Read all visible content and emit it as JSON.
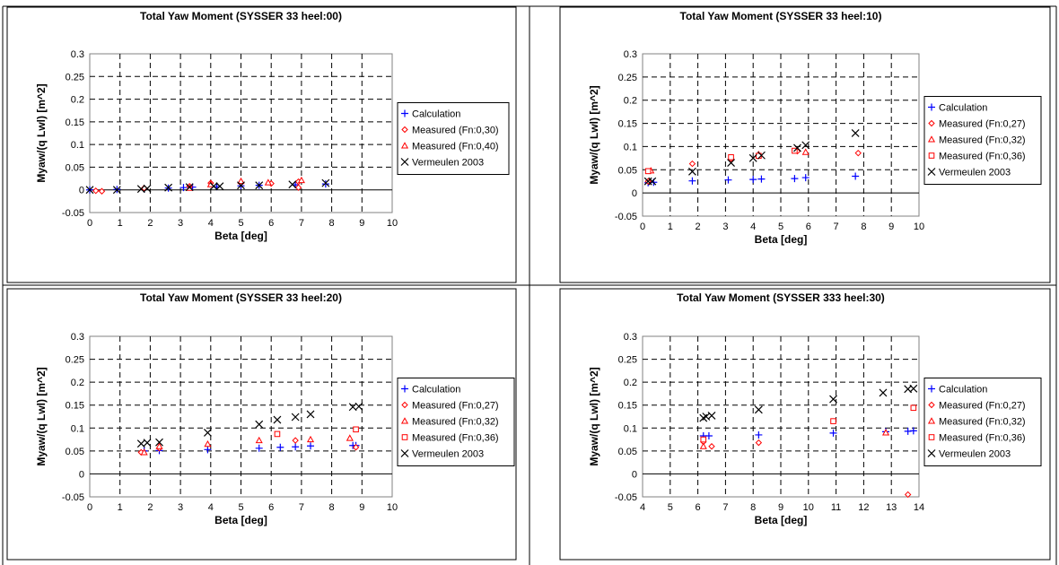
{
  "chart_data": [
    {
      "type": "scatter",
      "title": "Total Yaw Moment (SYSSER 33 heel:00)",
      "xlabel": "Beta [deg]",
      "ylabel": "Myaw/(q Lwl) [m^2]",
      "xlim": [
        0,
        10
      ],
      "ylim": [
        -0.05,
        0.3
      ],
      "xticks": [
        "0",
        "1",
        "2",
        "3",
        "4",
        "5",
        "6",
        "7",
        "8",
        "9",
        "10"
      ],
      "yticks": [
        "-0.05",
        "0",
        "0.05",
        "0.1",
        "0.15",
        "0.2",
        "0.25",
        "0.3"
      ],
      "grid": true,
      "legend_position": "right",
      "series": [
        {
          "name": "Calculation",
          "marker": "plus",
          "color": "#0000ff",
          "points": [
            [
              0,
              0
            ],
            [
              0.9,
              0.001
            ],
            [
              1.8,
              0.002
            ],
            [
              2.6,
              0.004
            ],
            [
              3.1,
              0.005
            ],
            [
              3.4,
              0.006
            ],
            [
              4.2,
              0.007
            ],
            [
              5.0,
              0.009
            ],
            [
              5.6,
              0.01
            ],
            [
              6.8,
              0.011
            ],
            [
              7.8,
              0.013
            ]
          ]
        },
        {
          "name": "Measured (Fn:0,30)",
          "marker": "diamond",
          "color": "#ff0000",
          "points": [
            [
              0.2,
              -0.002
            ],
            [
              0.4,
              -0.003
            ],
            [
              1.8,
              0.004
            ],
            [
              3.3,
              0.008
            ],
            [
              4.0,
              0.015
            ],
            [
              5.0,
              0.015
            ],
            [
              6.0,
              0.014
            ],
            [
              6.9,
              0.018
            ],
            [
              6.9,
              0.005
            ]
          ]
        },
        {
          "name": "Measured (Fn:0,40)",
          "marker": "triangle",
          "color": "#ff0000",
          "points": [
            [
              3.3,
              0.004
            ],
            [
              4.0,
              0.012
            ],
            [
              5.0,
              0.019
            ],
            [
              5.9,
              0.016
            ],
            [
              7.0,
              0.021
            ]
          ]
        },
        {
          "name": "Vermeulen 2003",
          "marker": "x",
          "color": "#000000",
          "points": [
            [
              0,
              0
            ],
            [
              0.9,
              0
            ],
            [
              1.7,
              0.002
            ],
            [
              1.9,
              0.003
            ],
            [
              2.6,
              0.005
            ],
            [
              3.3,
              0.006
            ],
            [
              4.1,
              0.008
            ],
            [
              4.3,
              0.008
            ],
            [
              5.0,
              0.01
            ],
            [
              5.6,
              0.01
            ],
            [
              6.7,
              0.012
            ],
            [
              7.8,
              0.015
            ]
          ]
        }
      ]
    },
    {
      "type": "scatter",
      "title": "Total Yaw Moment (SYSSER 33 heel:10)",
      "xlabel": "Beta [deg]",
      "ylabel": "Myaw/(q Lwl) [m^2]",
      "xlim": [
        0,
        10
      ],
      "ylim": [
        -0.05,
        0.3
      ],
      "xticks": [
        "0",
        "1",
        "2",
        "3",
        "4",
        "5",
        "6",
        "7",
        "8",
        "9",
        "10"
      ],
      "yticks": [
        "-0.05",
        "0",
        "0.05",
        "0.1",
        "0.15",
        "0.2",
        "0.25",
        "0.3"
      ],
      "grid": true,
      "legend_position": "right",
      "series": [
        {
          "name": "Calculation",
          "marker": "plus",
          "color": "#0000ff",
          "points": [
            [
              0.2,
              0.022
            ],
            [
              0.4,
              0.023
            ],
            [
              1.8,
              0.026
            ],
            [
              3.1,
              0.028
            ],
            [
              4.0,
              0.029
            ],
            [
              4.3,
              0.03
            ],
            [
              5.5,
              0.031
            ],
            [
              5.9,
              0.033
            ],
            [
              7.7,
              0.036
            ]
          ]
        },
        {
          "name": "Measured (Fn:0,27)",
          "marker": "diamond",
          "color": "#ff0000",
          "points": [
            [
              0.2,
              0.025
            ],
            [
              1.8,
              0.063
            ],
            [
              3.2,
              0.073
            ],
            [
              4.2,
              0.08
            ],
            [
              5.6,
              0.09
            ],
            [
              7.8,
              0.086
            ]
          ]
        },
        {
          "name": "Measured (Fn:0,32)",
          "marker": "triangle",
          "color": "#ff0000",
          "points": [
            [
              0.3,
              0.048
            ],
            [
              4.2,
              0.083
            ],
            [
              5.9,
              0.088
            ]
          ]
        },
        {
          "name": "Measured (Fn:0,36)",
          "marker": "square",
          "color": "#ff0000",
          "points": [
            [
              0.2,
              0.047
            ],
            [
              3.2,
              0.077
            ],
            [
              4.2,
              0.08
            ],
            [
              5.5,
              0.091
            ]
          ]
        },
        {
          "name": "Vermeulen 2003",
          "marker": "x",
          "color": "#000000",
          "points": [
            [
              0.2,
              0.025
            ],
            [
              0.35,
              0.025
            ],
            [
              1.8,
              0.046
            ],
            [
              3.2,
              0.065
            ],
            [
              4.0,
              0.075
            ],
            [
              4.3,
              0.081
            ],
            [
              5.6,
              0.097
            ],
            [
              5.9,
              0.103
            ],
            [
              7.7,
              0.129
            ]
          ]
        }
      ]
    },
    {
      "type": "scatter",
      "title": "Total Yaw Moment (SYSSER 33 heel:20)",
      "xlabel": "Beta [deg]",
      "ylabel": "Myaw/(q Lwl) [m^2]",
      "xlim": [
        0,
        10
      ],
      "ylim": [
        -0.05,
        0.3
      ],
      "xticks": [
        "0",
        "1",
        "2",
        "3",
        "4",
        "5",
        "6",
        "7",
        "8",
        "9",
        "10"
      ],
      "yticks": [
        "-0.05",
        "0",
        "0.05",
        "0.1",
        "0.15",
        "0.2",
        "0.25",
        "0.3"
      ],
      "grid": true,
      "legend_position": "right",
      "series": [
        {
          "name": "Calculation",
          "marker": "plus",
          "color": "#0000ff",
          "points": [
            [
              1.8,
              0.05
            ],
            [
              2.3,
              0.051
            ],
            [
              3.9,
              0.053
            ],
            [
              5.6,
              0.056
            ],
            [
              6.3,
              0.058
            ],
            [
              6.8,
              0.059
            ],
            [
              7.3,
              0.061
            ],
            [
              8.7,
              0.062
            ],
            [
              8.8,
              0.062
            ]
          ]
        },
        {
          "name": "Measured (Fn:0,27)",
          "marker": "diamond",
          "color": "#ff0000",
          "points": [
            [
              1.7,
              0.047
            ],
            [
              2.3,
              0.056
            ],
            [
              6.8,
              0.073
            ],
            [
              8.8,
              0.058
            ]
          ]
        },
        {
          "name": "Measured (Fn:0,32)",
          "marker": "triangle",
          "color": "#ff0000",
          "points": [
            [
              1.8,
              0.047
            ],
            [
              2.3,
              0.06
            ],
            [
              3.9,
              0.065
            ],
            [
              5.6,
              0.073
            ],
            [
              7.3,
              0.075
            ],
            [
              8.6,
              0.078
            ]
          ]
        },
        {
          "name": "Measured (Fn:0,36)",
          "marker": "square",
          "color": "#ff0000",
          "points": [
            [
              6.2,
              0.087
            ],
            [
              8.8,
              0.097
            ]
          ]
        },
        {
          "name": "Vermeulen 2003",
          "marker": "x",
          "color": "#000000",
          "points": [
            [
              1.7,
              0.066
            ],
            [
              1.9,
              0.068
            ],
            [
              2.3,
              0.069
            ],
            [
              3.9,
              0.09
            ],
            [
              5.6,
              0.108
            ],
            [
              6.2,
              0.118
            ],
            [
              6.8,
              0.124
            ],
            [
              7.3,
              0.13
            ],
            [
              8.7,
              0.146
            ],
            [
              8.9,
              0.147
            ]
          ]
        }
      ]
    },
    {
      "type": "scatter",
      "title": "Total Yaw Moment (SYSSER 333 heel:30)",
      "xlabel": "Beta [deg]",
      "ylabel": "Myaw/(q Lwl) [m^2]",
      "xlim": [
        4,
        14
      ],
      "ylim": [
        -0.05,
        0.3
      ],
      "xticks": [
        "4",
        "5",
        "6",
        "7",
        "8",
        "9",
        "10",
        "11",
        "12",
        "13",
        "14"
      ],
      "yticks": [
        "-0.05",
        "0",
        "0.05",
        "0.1",
        "0.15",
        "0.2",
        "0.25",
        "0.3"
      ],
      "grid": true,
      "legend_position": "right",
      "series": [
        {
          "name": "Calculation",
          "marker": "plus",
          "color": "#0000ff",
          "points": [
            [
              6.2,
              0.083
            ],
            [
              6.4,
              0.083
            ],
            [
              8.2,
              0.085
            ],
            [
              10.9,
              0.089
            ],
            [
              12.8,
              0.092
            ],
            [
              13.6,
              0.093
            ],
            [
              13.8,
              0.094
            ]
          ]
        },
        {
          "name": "Measured (Fn:0,27)",
          "marker": "diamond",
          "color": "#ff0000",
          "points": [
            [
              6.2,
              0.07
            ],
            [
              6.5,
              0.06
            ],
            [
              8.2,
              0.068
            ],
            [
              13.6,
              -0.045
            ]
          ]
        },
        {
          "name": "Measured (Fn:0,32)",
          "marker": "triangle",
          "color": "#ff0000",
          "points": [
            [
              6.2,
              0.06
            ],
            [
              12.8,
              0.09
            ]
          ]
        },
        {
          "name": "Measured (Fn:0,36)",
          "marker": "square",
          "color": "#ff0000",
          "points": [
            [
              6.2,
              0.075
            ],
            [
              10.9,
              0.115
            ],
            [
              13.8,
              0.144
            ]
          ]
        },
        {
          "name": "Vermeulen 2003",
          "marker": "x",
          "color": "#000000",
          "points": [
            [
              6.2,
              0.122
            ],
            [
              6.3,
              0.125
            ],
            [
              6.5,
              0.127
            ],
            [
              8.2,
              0.14
            ],
            [
              10.9,
              0.163
            ],
            [
              12.7,
              0.177
            ],
            [
              13.6,
              0.185
            ],
            [
              13.8,
              0.186
            ]
          ]
        }
      ]
    }
  ]
}
